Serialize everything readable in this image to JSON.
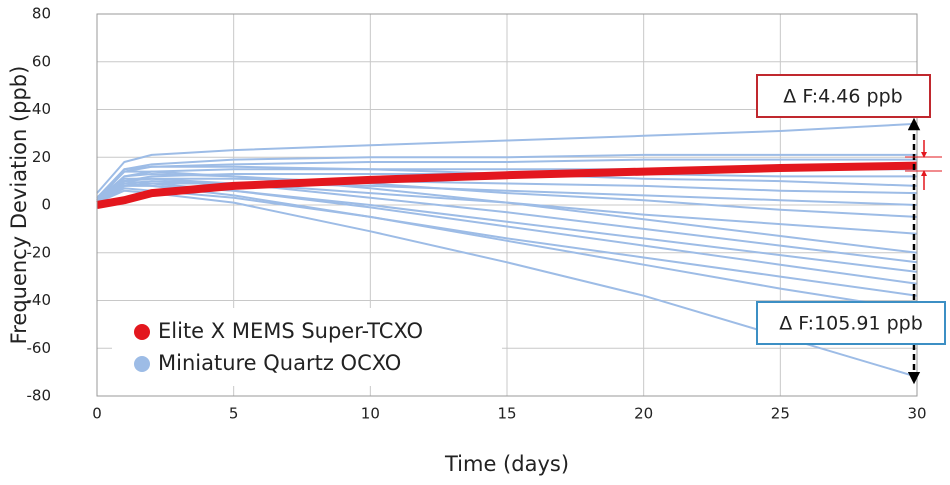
{
  "chart_data": {
    "type": "line",
    "x_label": "Time (days)",
    "y_label": "Frequency Deviation (ppb)",
    "x": [
      0,
      1,
      2,
      5,
      10,
      15,
      20,
      25,
      30
    ],
    "xlim": [
      0,
      30
    ],
    "xticks": [
      0,
      5,
      10,
      15,
      20,
      25,
      30
    ],
    "ylim": [
      -80,
      80
    ],
    "yticks": [
      -80,
      -60,
      -40,
      -20,
      0,
      20,
      40,
      60,
      80
    ],
    "grid": true,
    "series": [
      {
        "name": "Miniature Quartz OCXO",
        "color": "#9dbce6",
        "lines": [
          [
            5,
            18,
            21,
            23,
            25,
            27,
            29,
            31,
            34
          ],
          [
            3,
            15,
            17,
            19,
            20,
            20,
            21,
            21,
            21
          ],
          [
            2,
            14,
            16,
            17,
            18,
            18,
            19,
            19,
            19
          ],
          [
            2,
            12,
            14,
            15,
            15,
            15,
            15,
            15,
            15
          ],
          [
            1,
            10,
            12,
            13,
            13,
            13,
            13,
            12,
            12
          ],
          [
            2,
            15,
            16,
            16,
            15,
            13,
            11,
            10,
            8
          ],
          [
            1,
            10,
            11,
            11,
            10,
            9,
            8,
            6,
            5
          ],
          [
            1,
            8,
            9,
            9,
            8,
            6,
            4,
            2,
            0
          ],
          [
            2,
            12,
            13,
            12,
            9,
            5,
            2,
            -2,
            -5
          ],
          [
            1,
            9,
            10,
            9,
            5,
            1,
            -4,
            -8,
            -12
          ],
          [
            3,
            14,
            14,
            12,
            7,
            1,
            -6,
            -13,
            -20
          ],
          [
            2,
            11,
            11,
            9,
            3,
            -3,
            -10,
            -17,
            -24
          ],
          [
            1,
            8,
            8,
            6,
            0,
            -7,
            -14,
            -21,
            -28
          ],
          [
            2,
            10,
            9,
            6,
            -1,
            -9,
            -17,
            -25,
            -33
          ],
          [
            1,
            7,
            6,
            3,
            -5,
            -14,
            -22,
            -30,
            -38
          ],
          [
            2,
            9,
            8,
            4,
            -5,
            -15,
            -25,
            -35,
            -44
          ],
          [
            1,
            6,
            5,
            1,
            -11,
            -24,
            -38,
            -55,
            -72
          ]
        ]
      },
      {
        "name": "Elite X MEMS Super-TCXO",
        "color": "#e3171e",
        "lines": [
          [
            0,
            2,
            5,
            8,
            10.5,
            12.5,
            14,
            15.5,
            16.5
          ]
        ]
      }
    ],
    "legend_order": [
      1,
      0
    ],
    "annotations": [
      "Δ F:4.46 ppb",
      "Δ F:105.91 ppb"
    ]
  }
}
